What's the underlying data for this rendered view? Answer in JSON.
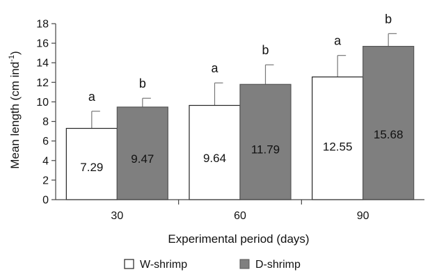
{
  "chart_data": {
    "type": "bar",
    "title": "",
    "categories": [
      "30",
      "60",
      "90"
    ],
    "xlabel": "Experimental period (days)",
    "ylabel_main": "Mean length (cm ind",
    "ylabel_sup": "-1",
    "ylabel_close": ")",
    "ylim": [
      0,
      18
    ],
    "yticks": [
      0,
      2,
      4,
      6,
      8,
      10,
      12,
      14,
      16,
      18
    ],
    "grid": false,
    "legend_position": "bottom-center",
    "series": [
      {
        "name": "W-shrimp",
        "color": "#ffffff",
        "values": [
          7.29,
          9.64,
          12.55
        ],
        "errors": [
          1.75,
          2.3,
          2.2
        ],
        "value_labels": [
          "7.29",
          "9.64",
          "12.55"
        ],
        "significance": [
          "a",
          "a",
          "a"
        ]
      },
      {
        "name": "D-shrimp",
        "color": "#7f7f7f",
        "values": [
          9.47,
          11.79,
          15.68
        ],
        "errors": [
          0.9,
          2.0,
          1.3
        ],
        "value_labels": [
          "9.47",
          "11.79",
          "15.68"
        ],
        "significance": [
          "b",
          "b",
          "b"
        ]
      }
    ]
  }
}
